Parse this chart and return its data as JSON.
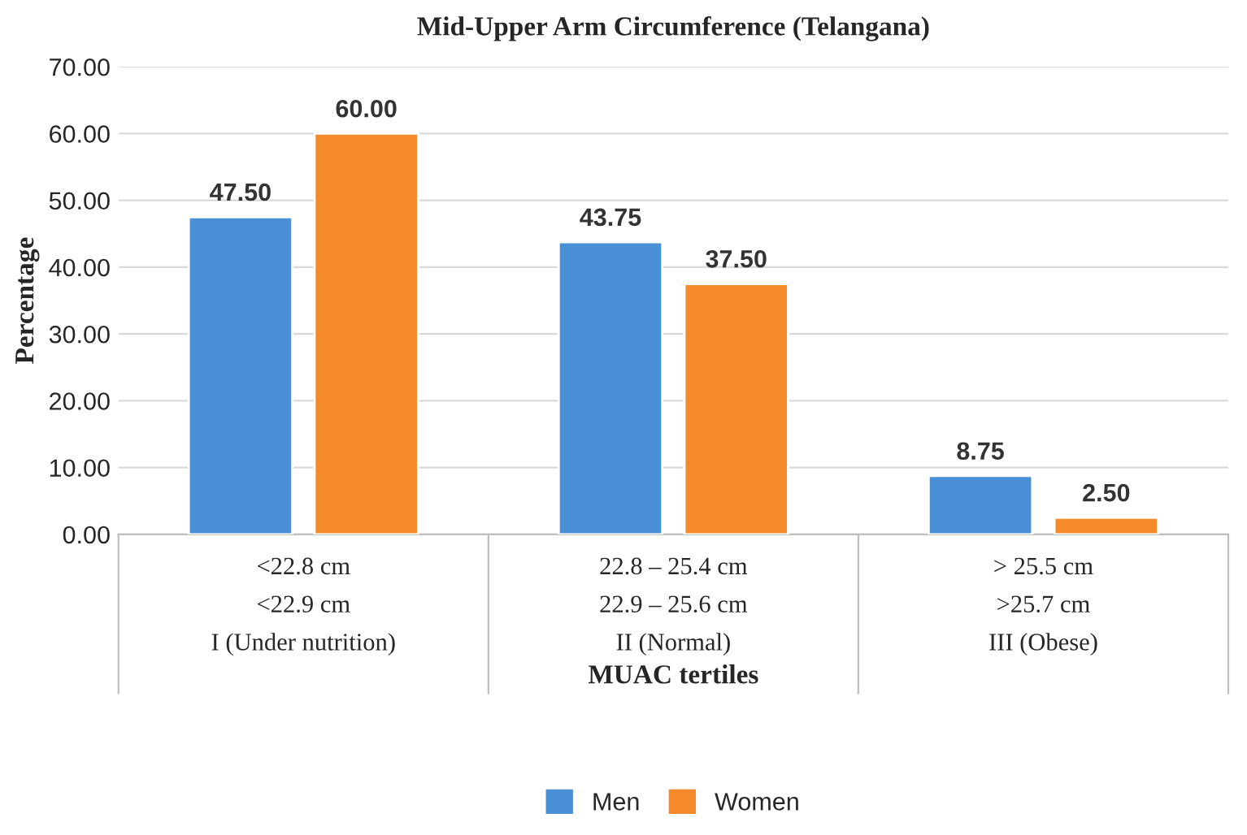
{
  "chart_data": {
    "type": "bar",
    "title": "Mid-Upper Arm Circumference (Telangana)",
    "xlabel": "MUAC tertiles",
    "ylabel": "Percentage",
    "categories": [
      "<22.8 cm\n<22.9 cm\nI (Under nutrition)",
      "22.8 – 25.4 cm\n22.9 – 25.6 cm\nII (Normal)",
      "> 25.5 cm\n>25.7 cm\nIII (Obese)"
    ],
    "series": [
      {
        "name": "Men",
        "color": "#4a90d6",
        "values": [
          47.5,
          43.75,
          8.75
        ],
        "value_labels": [
          "47.50",
          "43.75",
          "8.75"
        ]
      },
      {
        "name": "Women",
        "color": "#f58a2b",
        "values": [
          60.0,
          37.5,
          2.5
        ],
        "value_labels": [
          "60.00",
          "37.50",
          "2.50"
        ]
      }
    ],
    "ylim": [
      0,
      70
    ],
    "yticks": [
      {
        "value": 0,
        "label": "0.00"
      },
      {
        "value": 10,
        "label": "10.00"
      },
      {
        "value": 20,
        "label": "20.00"
      },
      {
        "value": 30,
        "label": "30.00"
      },
      {
        "value": 40,
        "label": "40.00"
      },
      {
        "value": 50,
        "label": "50.00"
      },
      {
        "value": 60,
        "label": "60.00"
      },
      {
        "value": 70,
        "label": "70.00"
      }
    ],
    "grid": "y",
    "legend": "bottom"
  }
}
